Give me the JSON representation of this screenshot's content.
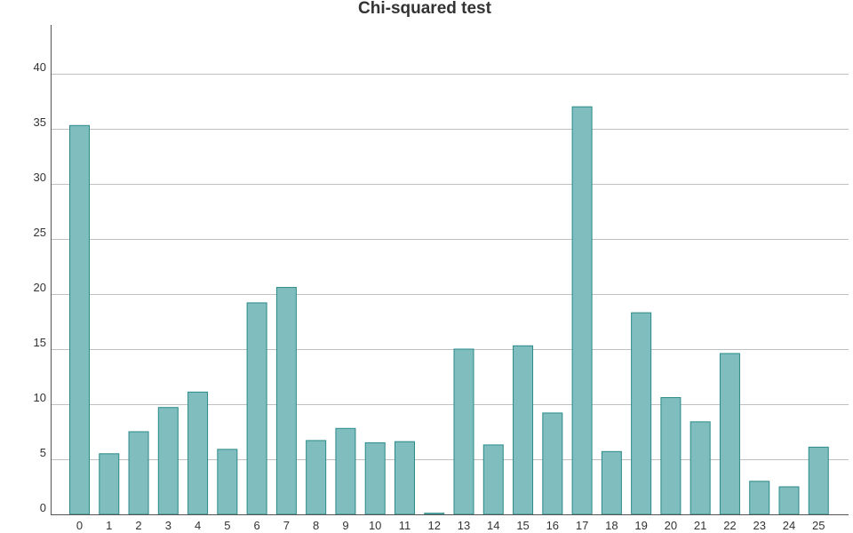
{
  "chart_data": {
    "type": "bar",
    "title": "Chi-squared test",
    "xlabel": "",
    "ylabel": "",
    "categories": [
      "0",
      "1",
      "2",
      "3",
      "4",
      "5",
      "6",
      "7",
      "8",
      "9",
      "10",
      "11",
      "12",
      "13",
      "14",
      "15",
      "16",
      "17",
      "18",
      "19",
      "20",
      "21",
      "22",
      "23",
      "24",
      "25"
    ],
    "values": [
      35.3,
      5.5,
      7.5,
      9.7,
      11.1,
      5.9,
      19.2,
      20.6,
      6.7,
      7.8,
      6.5,
      6.6,
      0.1,
      15.0,
      6.3,
      15.3,
      9.2,
      37.0,
      5.7,
      18.3,
      10.6,
      8.4,
      14.6,
      3.0,
      2.5,
      6.1
    ],
    "ylim": [
      0,
      44
    ],
    "yticks": [
      0,
      5,
      10,
      15,
      20,
      25,
      30,
      35,
      40
    ],
    "grid": true,
    "legend": "none",
    "colors": {
      "bar_fill": "#7fbdbe",
      "bar_stroke": "#2a8a88",
      "grid": "#c0c0c0",
      "axis": "#555555",
      "text": "#333333"
    }
  }
}
